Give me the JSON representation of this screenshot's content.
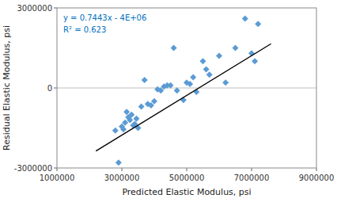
{
  "chart_data": {
    "type": "scatter",
    "x_label": "Predicted Elastic Modulus,  psi",
    "y_label": "Residual Elastic Modulus, psi",
    "xlim": [
      1000000,
      9000000
    ],
    "ylim": [
      -3000000,
      3000000
    ],
    "xticks": [
      1000000,
      3000000,
      5000000,
      7000000,
      9000000
    ],
    "yticks": [
      -3000000,
      0,
      3000000
    ],
    "grid": false,
    "series": [
      {
        "type": "scatter",
        "color": "#5b9bd5",
        "marker": "diamond",
        "x": [
          2800000,
          2900000,
          3000000,
          3050000,
          3100000,
          3150000,
          3200000,
          3250000,
          3300000,
          3350000,
          3400000,
          3450000,
          3500000,
          3600000,
          3700000,
          3800000,
          3900000,
          4000000,
          4100000,
          4200000,
          4300000,
          4400000,
          4500000,
          4600000,
          4700000,
          4900000,
          5000000,
          5100000,
          5200000,
          5300000,
          5500000,
          5600000,
          5700000,
          6000000,
          6200000,
          6500000,
          6800000,
          7000000,
          7100000,
          7200000
        ],
        "values": [
          -1600000,
          -2800000,
          -1450000,
          -1550000,
          -1300000,
          -900000,
          -1100000,
          -1200000,
          -1000000,
          -1400000,
          -1350000,
          -1150000,
          -1500000,
          -700000,
          300000,
          -600000,
          -650000,
          -500000,
          -50000,
          -100000,
          50000,
          100000,
          100000,
          1500000,
          -100000,
          -450000,
          200000,
          150000,
          400000,
          -150000,
          1000000,
          700000,
          500000,
          1200000,
          200000,
          1500000,
          2600000,
          1300000,
          1000000,
          2400000
        ]
      },
      {
        "type": "line",
        "color": "#000000",
        "line_style": "solid",
        "x": [
          2200000,
          7600000
        ],
        "values": [
          -2362540,
          1656680
        ]
      }
    ],
    "reference_line": {
      "y": 0,
      "color": "#c0c0c0"
    },
    "annotations": [
      {
        "text": "y = 0.7443x - 4E+06",
        "color": "#0070c0"
      },
      {
        "text": "R² = 0.623",
        "color": "#0070c0"
      }
    ]
  }
}
